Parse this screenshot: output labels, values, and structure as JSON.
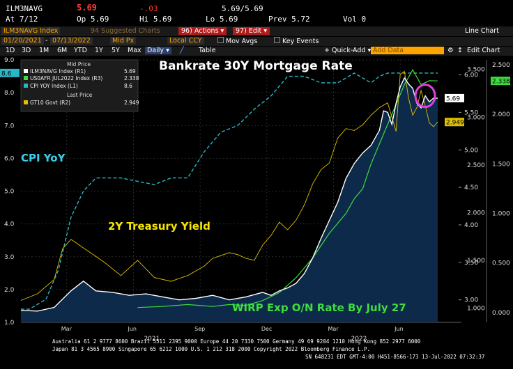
{
  "header": {
    "ticker": "ILM3NAVG",
    "last": "5.69",
    "change": "-.03",
    "last_range": "5.69/5.69",
    "at_label": "At 7/12",
    "open": "Op 5.69",
    "high": "Hi 5.69",
    "low": "Lo 5.69",
    "prev": "Prev  5.72",
    "vol": "Vol 0"
  },
  "toolbar": {
    "security": "ILM3NAVG Index",
    "suggested": "94 Suggested Charts",
    "actions": "96) Actions ▾",
    "edit": "97) Edit ▾",
    "line_chart": "Line Chart",
    "date_from": "01/20/2021",
    "date_to": "07/13/2022",
    "price_type": "Mid Px",
    "currency": "Local CCY",
    "mov_avgs": "Mov Avgs",
    "key_events": "Key Events",
    "periods": [
      "1D",
      "3D",
      "1M",
      "6M",
      "YTD",
      "1Y",
      "5Y",
      "Max"
    ],
    "frequency": "Daily",
    "table": "Table",
    "quick_add": "+ Quick-Add ▾",
    "add_data": "Add Data",
    "edit_chart": "Edit Chart"
  },
  "footer": {
    "line1": "Australia 61 2 9777 8600 Brazil 5511 2395 9000 Europe 44 20 7330 7500 Germany 49 69 9204 1210 Hong Kong 852 2977 6000",
    "line2": "Japan 81 3 4565 8900       Singapore 65 6212 1000       U.S. 1 212 318 2000          Copyright 2022 Bloomberg Finance L.P.",
    "line3": "SN 648231 EDT  GMT-4:00 H451-8566-173 13-Jul-2022 07:32:37"
  },
  "colors": {
    "mortgage": "#ffffff",
    "wirp": "#3fdc3f",
    "cpi": "#29b6c6",
    "gt10": "#e0c000",
    "area": "#0d2a4a"
  },
  "chart_data": {
    "type": "line",
    "title": "Bankrate 30Y Mortgage Rate",
    "annotations": [
      "CPI YoY",
      "2Y Treasury Yield",
      "WIRP Exp O/N Rate By July 27"
    ],
    "x_ticks": [
      "Mar",
      "Jun",
      "Sep",
      "Dec",
      "Mar",
      "Jun"
    ],
    "year_labels": [
      "2021",
      "2022"
    ],
    "legend": {
      "header": "Mid Price",
      "last_header": "Last Price",
      "entries": [
        {
          "name": "ILM3NAVG Index  (R1)",
          "value": "5.69"
        },
        {
          "name": "US0AFR JUL2022 Index  (R3)",
          "value": "2.338"
        },
        {
          "name": "CPI YOY Index  (L1)",
          "value": "8.6"
        },
        {
          "name": "GT10 Govt  (R2)",
          "value": "2.949"
        }
      ]
    },
    "axes": {
      "left": {
        "label": "CPI YoY",
        "ticks": [
          "9.0",
          "8.0",
          "7.0",
          "6.0",
          "5.0",
          "4.0",
          "3.0",
          "2.0",
          "1.0"
        ],
        "range": [
          1.0,
          9.0
        ]
      },
      "right1": {
        "label": "Mortgage",
        "ticks": [
          "6.00",
          "5.50",
          "5.00",
          "4.50",
          "4.00",
          "3.50",
          "3.00"
        ],
        "range": [
          2.7,
          6.2
        ]
      },
      "right2": {
        "label": "GT10",
        "ticks": [
          "3.500",
          "3.000",
          "2.500",
          "2.000",
          "1.500",
          "1.000"
        ],
        "range": [
          0.85,
          3.6
        ]
      },
      "right3": {
        "label": "WIRP",
        "ticks": [
          "2.500",
          "2.000",
          "1.500",
          "1.000",
          "0.500",
          "0.000"
        ],
        "range": [
          -0.1,
          2.55
        ]
      }
    },
    "tags": {
      "mortgage": "5.69",
      "wirp": "2.338",
      "cpi": "8.6",
      "gt10": "2.949"
    },
    "series": [
      {
        "name": "CPI YoY",
        "axis": "left",
        "t": [
          0.0,
          0.02,
          0.06,
          0.09,
          0.12,
          0.15,
          0.18,
          0.2,
          0.24,
          0.28,
          0.32,
          0.36,
          0.4,
          0.44,
          0.48,
          0.52,
          0.56,
          0.6,
          0.64,
          0.68,
          0.72,
          0.76,
          0.8,
          0.84,
          0.86,
          0.88,
          0.9,
          0.92,
          0.94,
          0.96,
          1.0
        ],
        "values": [
          1.4,
          1.4,
          1.7,
          2.6,
          4.2,
          5.0,
          5.4,
          5.4,
          5.4,
          5.3,
          5.2,
          5.4,
          5.4,
          6.2,
          6.8,
          7.0,
          7.5,
          7.9,
          8.5,
          8.5,
          8.3,
          8.3,
          8.6,
          8.3,
          8.5,
          8.6,
          8.6,
          8.6,
          8.6,
          8.6,
          8.6
        ]
      },
      {
        "name": "Bankrate 30Y",
        "axis": "right1",
        "t": [
          0.0,
          0.04,
          0.08,
          0.12,
          0.15,
          0.18,
          0.22,
          0.26,
          0.3,
          0.34,
          0.38,
          0.42,
          0.46,
          0.5,
          0.54,
          0.58,
          0.6,
          0.62,
          0.64,
          0.66,
          0.68,
          0.7,
          0.72,
          0.74,
          0.76,
          0.78,
          0.8,
          0.82,
          0.84,
          0.86,
          0.87,
          0.88,
          0.89,
          0.9,
          0.91,
          0.92,
          0.93,
          0.94,
          0.95,
          0.96,
          0.97,
          0.98,
          0.99,
          1.0
        ],
        "values": [
          2.86,
          2.85,
          2.9,
          3.12,
          3.25,
          3.12,
          3.1,
          3.06,
          3.08,
          3.04,
          3.0,
          3.02,
          3.06,
          3.0,
          3.04,
          3.1,
          3.06,
          3.12,
          3.16,
          3.22,
          3.35,
          3.56,
          3.82,
          4.06,
          4.3,
          4.62,
          4.82,
          4.96,
          5.06,
          5.26,
          5.52,
          5.5,
          5.34,
          5.62,
          5.84,
          5.96,
          5.88,
          5.82,
          5.62,
          5.56,
          5.72,
          5.64,
          5.69,
          5.69
        ]
      },
      {
        "name": "2Y Treasury Yield",
        "axis": "right2",
        "t": [
          0.0,
          0.04,
          0.08,
          0.1,
          0.12,
          0.16,
          0.2,
          0.24,
          0.28,
          0.32,
          0.36,
          0.4,
          0.44,
          0.46,
          0.5,
          0.52,
          0.54,
          0.56,
          0.58,
          0.6,
          0.62,
          0.64,
          0.66,
          0.68,
          0.7,
          0.72,
          0.74,
          0.76,
          0.78,
          0.8,
          0.82,
          0.84,
          0.86,
          0.88,
          0.89,
          0.9,
          0.91,
          0.92,
          0.93,
          0.94,
          0.95,
          0.96,
          0.97,
          0.98,
          0.99,
          1.0
        ],
        "values": [
          1.08,
          1.15,
          1.3,
          1.62,
          1.72,
          1.6,
          1.48,
          1.34,
          1.5,
          1.32,
          1.28,
          1.34,
          1.44,
          1.52,
          1.58,
          1.56,
          1.52,
          1.5,
          1.66,
          1.76,
          1.9,
          1.82,
          1.92,
          2.08,
          2.3,
          2.45,
          2.52,
          2.78,
          2.88,
          2.86,
          2.92,
          3.02,
          3.1,
          3.15,
          3.0,
          2.85,
          3.45,
          3.48,
          3.2,
          3.02,
          3.1,
          3.28,
          3.12,
          2.94,
          2.9,
          2.95
        ]
      },
      {
        "name": "WIRP Exp O/N",
        "axis": "right3",
        "t": [
          0.28,
          0.34,
          0.4,
          0.46,
          0.5,
          0.54,
          0.58,
          0.62,
          0.66,
          0.7,
          0.74,
          0.78,
          0.8,
          0.82,
          0.84,
          0.86,
          0.88,
          0.9,
          0.92,
          0.94,
          0.96,
          0.98,
          1.0
        ],
        "values": [
          0.05,
          0.06,
          0.08,
          0.06,
          0.08,
          0.07,
          0.12,
          0.2,
          0.35,
          0.55,
          0.8,
          1.0,
          1.15,
          1.25,
          1.5,
          1.7,
          1.9,
          2.1,
          2.3,
          2.45,
          2.3,
          2.34,
          2.338
        ]
      }
    ]
  }
}
